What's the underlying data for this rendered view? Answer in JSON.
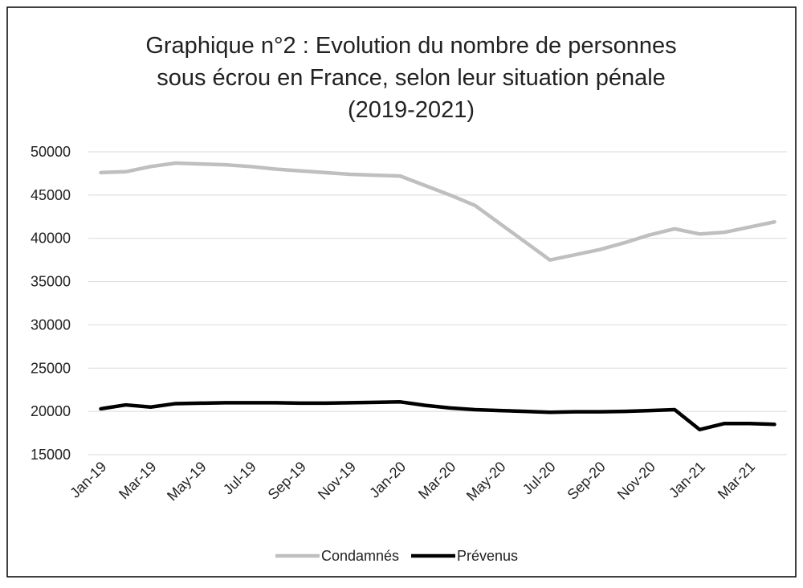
{
  "chart_data": {
    "type": "line",
    "title": [
      "Graphique n°2 : Evolution du nombre de personnes",
      "sous écrou en France, selon leur situation pénale",
      "(2019-2021)"
    ],
    "categories": [
      "Jan-19",
      null,
      "Mar-19",
      null,
      "May-19",
      null,
      "Jul-19",
      null,
      "Sep-19",
      null,
      "Nov-19",
      null,
      "Jan-20",
      null,
      "Mar-20",
      null,
      "May-20",
      null,
      "Jul-20",
      null,
      "Sep-20",
      null,
      "Nov-20",
      null,
      "Jan-21",
      null,
      "Mar-21",
      null
    ],
    "series": [
      {
        "name": "Condamnés",
        "color": "#bfbfbf",
        "values": [
          47600,
          47700,
          48300,
          48700,
          48600,
          48500,
          48300,
          48000,
          47800,
          47600,
          47400,
          47300,
          47200,
          46100,
          45000,
          43800,
          41700,
          39600,
          37500,
          38100,
          38700,
          39500,
          40400,
          41100,
          40500,
          40700,
          41300,
          41900
        ]
      },
      {
        "name": "Prévenus",
        "color": "#000000",
        "values": [
          20300,
          20750,
          20500,
          20900,
          20950,
          21000,
          21000,
          21000,
          20950,
          20950,
          21000,
          21050,
          21100,
          20700,
          20400,
          20200,
          20100,
          20000,
          19900,
          19950,
          19950,
          20000,
          20100,
          20200,
          17900,
          18600,
          18600,
          18500
        ]
      }
    ],
    "ylim": [
      15000,
      50000
    ],
    "yticks": [
      15000,
      20000,
      25000,
      30000,
      35000,
      40000,
      45000,
      50000
    ],
    "grid": true,
    "legend": "bottom"
  }
}
